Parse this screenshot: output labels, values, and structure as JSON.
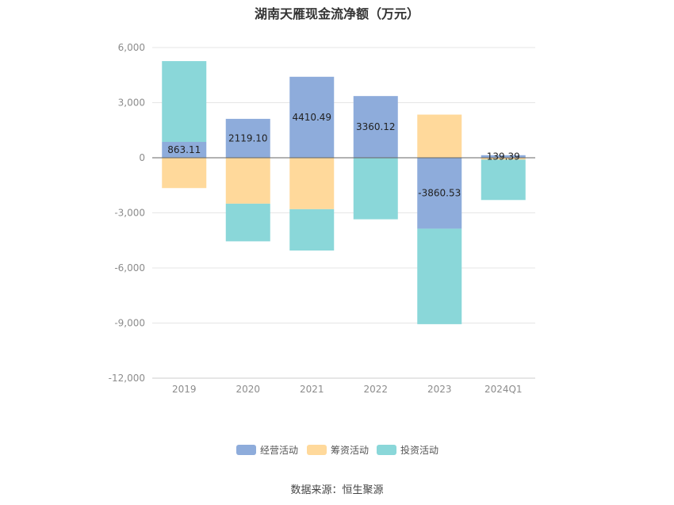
{
  "chart_data": {
    "type": "bar",
    "stacked": true,
    "title": "湖南天雁现金流净额（万元）",
    "source": "数据来源：恒生聚源",
    "categories": [
      "2019",
      "2020",
      "2021",
      "2022",
      "2023",
      "2024Q1"
    ],
    "ylim": [
      -12000,
      6000
    ],
    "yticks": [
      6000,
      3000,
      0,
      -3000,
      -6000,
      -9000,
      -12000
    ],
    "ytick_labels": [
      "6,000",
      "3,000",
      "0",
      "-3,000",
      "-6,000",
      "-9,000",
      "-12,000"
    ],
    "grid": true,
    "legend_position": "bottom",
    "series": [
      {
        "name": "经营活动",
        "color": "#8eacdb",
        "values": [
          863.11,
          2119.1,
          4410.49,
          3360.12,
          -3860.53,
          139.39
        ],
        "labels": [
          "863.11",
          "2119.10",
          "4410.49",
          "3360.12",
          "-3860.53",
          "139.39"
        ]
      },
      {
        "name": "筹资活动",
        "color": "#ffd99b",
        "values": [
          -1650,
          -2500,
          -2800,
          0,
          2350,
          -100
        ]
      },
      {
        "name": "投资活动",
        "color": "#8ad7d9",
        "values": [
          4400,
          -2050,
          -2250,
          -3350,
          -5200,
          -2200
        ]
      }
    ]
  }
}
